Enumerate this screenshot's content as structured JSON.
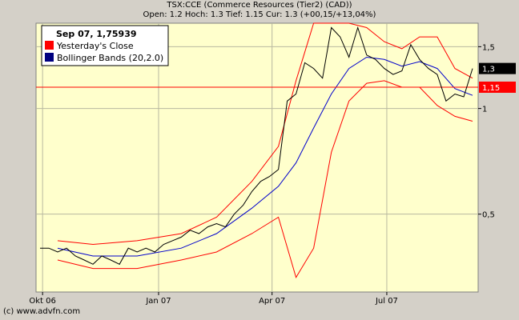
{
  "header": {
    "title": "TSX:CCE (Commerce Resources (Tier2) (CAD))",
    "quote": "Open: 1.2 Hoch: 1.3 Tief: 1.15 Cur: 1.3 (+00,15/+13,04%)"
  },
  "legend": {
    "date_label": "Sep 07, 1,75939",
    "items": [
      {
        "label": "Yesterday's Close",
        "color": "#ff0000"
      },
      {
        "label": "Bollinger Bands (20,2.0)",
        "color": "#000080"
      }
    ]
  },
  "footer": {
    "copyright": "(c) www.advfn.com"
  },
  "colors": {
    "plot_bg": "#ffffcc",
    "frame_bg": "#d4d0c8",
    "price": "#000000",
    "bands": "#ff0000",
    "middle": "#0000cc",
    "close_line": "#ff0000",
    "current_box": "#000000",
    "close_box": "#ff0000"
  },
  "chart_data": {
    "type": "line",
    "xlabel": "",
    "ylabel": "",
    "x_range": [
      "2006-09-29",
      "2007-09-07"
    ],
    "ylim": [
      0.3,
      1.75
    ],
    "log_scale": true,
    "grid": true,
    "x_ticks": [
      {
        "label": "Okt 06",
        "date": "2006-10-01"
      },
      {
        "label": "Jan 07",
        "date": "2007-01-01"
      },
      {
        "label": "Apr 07",
        "date": "2007-04-01"
      },
      {
        "label": "Jul 07",
        "date": "2007-07-01"
      }
    ],
    "y_ticks": [
      {
        "label": "1,5",
        "value": 1.5
      },
      {
        "label": "1",
        "value": 1.0
      },
      {
        "label": "0,5",
        "value": 0.5
      }
    ],
    "reference_lines": [
      {
        "name": "Yesterday's Close",
        "value": 1.15,
        "label": "1,15"
      }
    ],
    "current_value": {
      "value": 1.3,
      "label": "1,3"
    },
    "series": [
      {
        "name": "Price",
        "points": [
          [
            "2006-09-29",
            0.4
          ],
          [
            "2006-10-06",
            0.4
          ],
          [
            "2006-10-13",
            0.39
          ],
          [
            "2006-10-20",
            0.4
          ],
          [
            "2006-10-27",
            0.38
          ],
          [
            "2006-11-03",
            0.37
          ],
          [
            "2006-11-10",
            0.36
          ],
          [
            "2006-11-17",
            0.38
          ],
          [
            "2006-11-24",
            0.37
          ],
          [
            "2006-12-01",
            0.36
          ],
          [
            "2006-12-08",
            0.4
          ],
          [
            "2006-12-15",
            0.39
          ],
          [
            "2006-12-22",
            0.4
          ],
          [
            "2006-12-29",
            0.39
          ],
          [
            "2007-01-05",
            0.41
          ],
          [
            "2007-01-12",
            0.42
          ],
          [
            "2007-01-19",
            0.43
          ],
          [
            "2007-01-26",
            0.45
          ],
          [
            "2007-02-02",
            0.44
          ],
          [
            "2007-02-09",
            0.46
          ],
          [
            "2007-02-16",
            0.47
          ],
          [
            "2007-02-23",
            0.46
          ],
          [
            "2007-03-02",
            0.5
          ],
          [
            "2007-03-09",
            0.53
          ],
          [
            "2007-03-16",
            0.58
          ],
          [
            "2007-03-23",
            0.62
          ],
          [
            "2007-03-30",
            0.64
          ],
          [
            "2007-04-06",
            0.67
          ],
          [
            "2007-04-13",
            1.05
          ],
          [
            "2007-04-20",
            1.1
          ],
          [
            "2007-04-27",
            1.35
          ],
          [
            "2007-05-04",
            1.3
          ],
          [
            "2007-05-11",
            1.22
          ],
          [
            "2007-05-18",
            1.7
          ],
          [
            "2007-05-25",
            1.6
          ],
          [
            "2007-06-01",
            1.4
          ],
          [
            "2007-06-08",
            1.7
          ],
          [
            "2007-06-15",
            1.42
          ],
          [
            "2007-06-22",
            1.38
          ],
          [
            "2007-06-29",
            1.3
          ],
          [
            "2007-07-06",
            1.25
          ],
          [
            "2007-07-13",
            1.28
          ],
          [
            "2007-07-20",
            1.52
          ],
          [
            "2007-07-27",
            1.38
          ],
          [
            "2007-08-03",
            1.3
          ],
          [
            "2007-08-10",
            1.25
          ],
          [
            "2007-08-17",
            1.05
          ],
          [
            "2007-08-24",
            1.1
          ],
          [
            "2007-08-31",
            1.08
          ],
          [
            "2007-09-07",
            1.3
          ]
        ]
      },
      {
        "name": "Bollinger Bands (20,2.0)",
        "band": "middle",
        "points": [
          [
            "2006-10-13",
            0.4
          ],
          [
            "2006-11-10",
            0.38
          ],
          [
            "2006-12-15",
            0.38
          ],
          [
            "2007-01-19",
            0.4
          ],
          [
            "2007-02-16",
            0.44
          ],
          [
            "2007-03-16",
            0.52
          ],
          [
            "2007-04-06",
            0.6
          ],
          [
            "2007-04-20",
            0.7
          ],
          [
            "2007-05-04",
            0.88
          ],
          [
            "2007-05-18",
            1.1
          ],
          [
            "2007-06-01",
            1.3
          ],
          [
            "2007-06-15",
            1.4
          ],
          [
            "2007-06-29",
            1.38
          ],
          [
            "2007-07-13",
            1.32
          ],
          [
            "2007-07-27",
            1.36
          ],
          [
            "2007-08-10",
            1.3
          ],
          [
            "2007-08-24",
            1.14
          ],
          [
            "2007-09-07",
            1.09
          ]
        ]
      },
      {
        "name": "Upper Band",
        "band": "upper",
        "points": [
          [
            "2006-10-13",
            0.42
          ],
          [
            "2006-11-10",
            0.41
          ],
          [
            "2006-12-15",
            0.42
          ],
          [
            "2007-01-19",
            0.44
          ],
          [
            "2007-02-16",
            0.49
          ],
          [
            "2007-03-16",
            0.62
          ],
          [
            "2007-04-06",
            0.78
          ],
          [
            "2007-04-20",
            1.2
          ],
          [
            "2007-05-04",
            1.75
          ],
          [
            "2007-05-18",
            1.75
          ],
          [
            "2007-06-01",
            1.75
          ],
          [
            "2007-06-15",
            1.7
          ],
          [
            "2007-06-29",
            1.55
          ],
          [
            "2007-07-13",
            1.48
          ],
          [
            "2007-07-27",
            1.6
          ],
          [
            "2007-08-10",
            1.6
          ],
          [
            "2007-08-24",
            1.3
          ],
          [
            "2007-09-07",
            1.22
          ]
        ]
      },
      {
        "name": "Lower Band",
        "band": "lower",
        "points": [
          [
            "2006-10-13",
            0.37
          ],
          [
            "2006-11-10",
            0.35
          ],
          [
            "2006-12-15",
            0.35
          ],
          [
            "2007-01-19",
            0.37
          ],
          [
            "2007-02-16",
            0.39
          ],
          [
            "2007-03-16",
            0.44
          ],
          [
            "2007-04-06",
            0.49
          ],
          [
            "2007-04-20",
            0.33
          ],
          [
            "2007-05-04",
            0.4
          ],
          [
            "2007-05-18",
            0.75
          ],
          [
            "2007-06-01",
            1.05
          ],
          [
            "2007-06-15",
            1.18
          ],
          [
            "2007-06-29",
            1.2
          ],
          [
            "2007-07-13",
            1.15
          ],
          [
            "2007-07-27",
            1.15
          ],
          [
            "2007-08-10",
            1.02
          ],
          [
            "2007-08-24",
            0.95
          ],
          [
            "2007-09-07",
            0.92
          ]
        ]
      }
    ]
  }
}
